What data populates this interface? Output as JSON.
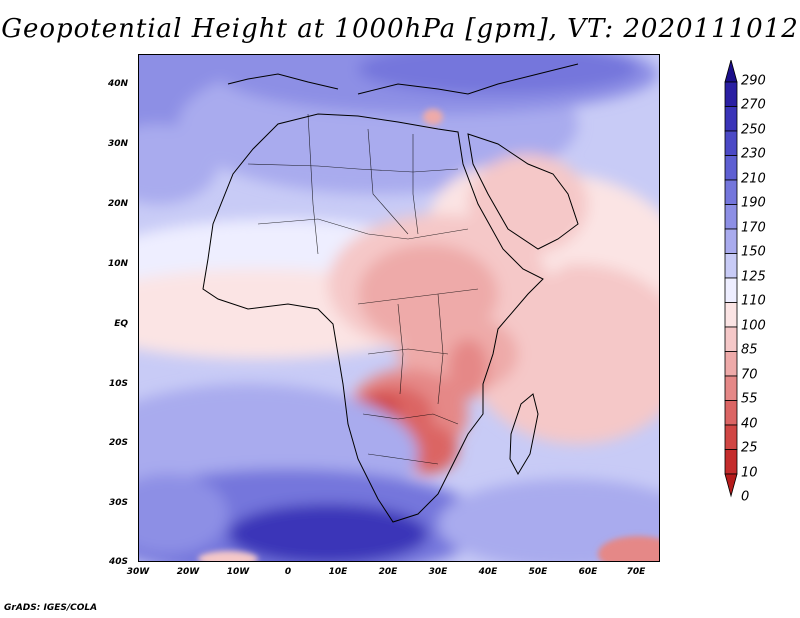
{
  "title": "Geopotential Height at 1000hPa [gpm], VT: 2020111012",
  "footer": "GrADS: IGES/COLA",
  "axes": {
    "lat_labels": [
      "40N",
      "30N",
      "20N",
      "10N",
      "EQ",
      "10S",
      "20S",
      "30S",
      "40S"
    ],
    "lon_labels": [
      "30W",
      "20W",
      "10W",
      "0",
      "10E",
      "20E",
      "30E",
      "40E",
      "50E",
      "60E",
      "70E"
    ]
  },
  "colorbar": {
    "labels": [
      "290",
      "270",
      "250",
      "230",
      "210",
      "190",
      "170",
      "150",
      "125",
      "110",
      "100",
      "85",
      "70",
      "55",
      "40",
      "25",
      "10",
      "0"
    ],
    "colors": [
      "#1b0f8a",
      "#2a1fa3",
      "#3a34b8",
      "#4b49c6",
      "#5e5fd2",
      "#7476dc",
      "#8d8fe5",
      "#a9abee",
      "#c8cbf6",
      "#eeeeff",
      "#fbe4e4",
      "#f5c8c8",
      "#eeaaa9",
      "#e58887",
      "#db6564",
      "#d04644",
      "#c42c2c",
      "#b51b1b"
    ]
  }
}
